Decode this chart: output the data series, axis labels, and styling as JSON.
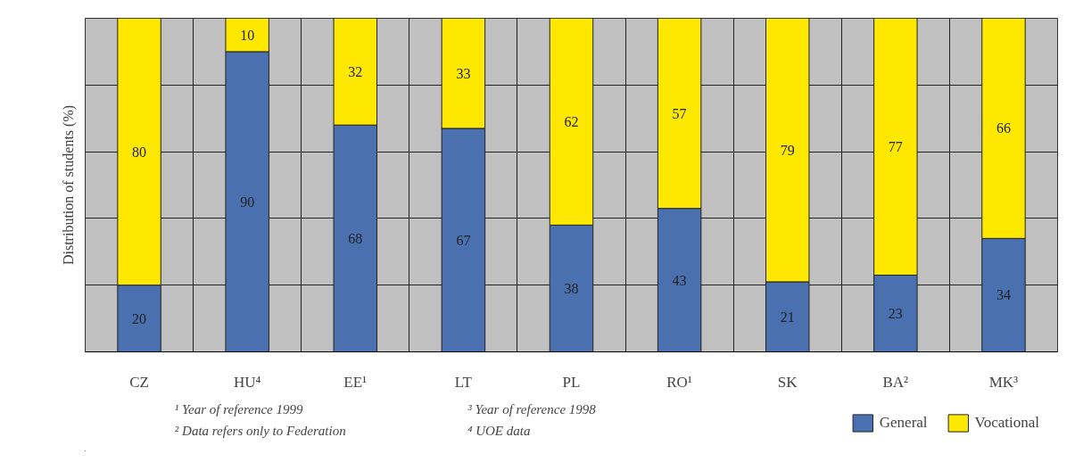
{
  "chart_data": {
    "type": "bar",
    "stacked": true,
    "ylabel": "Distribution of students (%)",
    "categories": [
      "CZ",
      "HU⁴",
      "EE¹",
      "LT",
      "PL",
      "RO¹",
      "SK",
      "BA²",
      "MK³"
    ],
    "series": [
      {
        "name": "General",
        "color": "#4a70b0",
        "values": [
          20,
          90,
          68,
          67,
          38,
          43,
          21,
          23,
          34
        ]
      },
      {
        "name": "Vocational",
        "color": "#ffe800",
        "values": [
          80,
          10,
          32,
          33,
          62,
          57,
          79,
          77,
          66
        ]
      }
    ],
    "data_labels": true,
    "ylim": [
      0,
      100
    ],
    "yticks": [
      {
        "value": 0,
        "label": null
      },
      {
        "value": 20,
        "label": null
      },
      {
        "value": 40,
        "label": null
      },
      {
        "value": 60,
        "label": null
      },
      {
        "value": 80,
        "label": null
      },
      {
        "value": 100,
        "label": null
      }
    ],
    "tick_labels": "x",
    "grid": true,
    "legend": "bottom right",
    "annotations": [
      "¹ Year of reference 1999",
      "² Data refers only to Federation",
      "³ Year of reference 1998",
      "⁴ UOE data"
    ]
  }
}
